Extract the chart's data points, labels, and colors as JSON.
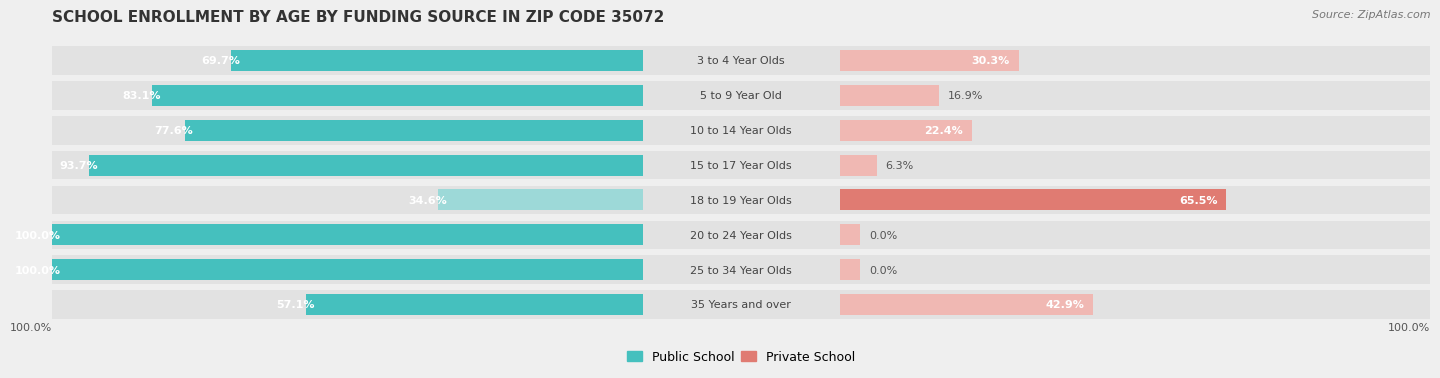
{
  "title": "SCHOOL ENROLLMENT BY AGE BY FUNDING SOURCE IN ZIP CODE 35072",
  "source": "Source: ZipAtlas.com",
  "categories": [
    "3 to 4 Year Olds",
    "5 to 9 Year Old",
    "10 to 14 Year Olds",
    "15 to 17 Year Olds",
    "18 to 19 Year Olds",
    "20 to 24 Year Olds",
    "25 to 34 Year Olds",
    "35 Years and over"
  ],
  "public_values": [
    69.7,
    83.1,
    77.6,
    93.7,
    34.6,
    100.0,
    100.0,
    57.1
  ],
  "private_values": [
    30.3,
    16.9,
    22.4,
    6.3,
    65.5,
    0.0,
    0.0,
    42.9
  ],
  "public_color_strong": "#45c0be",
  "public_color_light": "#9dd9d8",
  "private_color_strong": "#e07b72",
  "private_color_light": "#f0b8b3",
  "bg_color": "#efefef",
  "row_bg_color": "#e2e2e2",
  "title_fontsize": 11,
  "label_fontsize": 8,
  "value_fontsize": 8,
  "legend_fontsize": 9,
  "source_fontsize": 8
}
